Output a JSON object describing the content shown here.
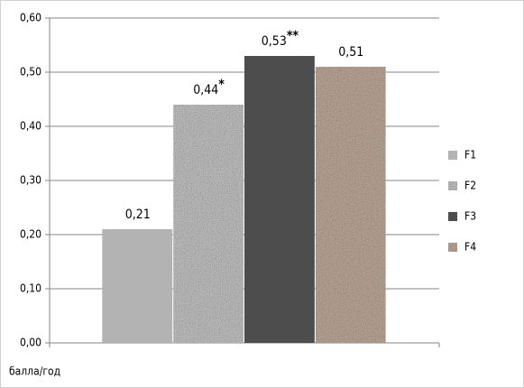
{
  "chart_data": {
    "type": "bar",
    "categories": [
      null
    ],
    "series": [
      {
        "name": "F1",
        "color": "#b3b3b3",
        "texture": false,
        "values": [
          0.21
        ],
        "value_labels": [
          "0,21"
        ]
      },
      {
        "name": "F2",
        "color": "#dcdcdc",
        "texture": true,
        "values": [
          0.44
        ],
        "value_labels": [
          "0,44*"
        ]
      },
      {
        "name": "F3",
        "color": "#4d4d4d",
        "texture": false,
        "values": [
          0.53
        ],
        "value_labels": [
          "0,53**"
        ]
      },
      {
        "name": "F4",
        "color": "#d6bfae",
        "texture": true,
        "values": [
          0.51
        ],
        "value_labels": [
          "0,51"
        ]
      }
    ],
    "ylim": [
      0,
      0.6
    ],
    "yticks": [
      {
        "value": 0,
        "label": "0,00"
      },
      {
        "value": 0.1,
        "label": "0,10"
      },
      {
        "value": 0.2,
        "label": "0,20"
      },
      {
        "value": 0.3,
        "label": "0,30"
      },
      {
        "value": 0.4,
        "label": "0,40"
      },
      {
        "value": 0.5,
        "label": "0,50"
      },
      {
        "value": 0.6,
        "label": "0,60"
      }
    ],
    "grid": true,
    "legend": "right",
    "xlabel": "балла/год"
  }
}
